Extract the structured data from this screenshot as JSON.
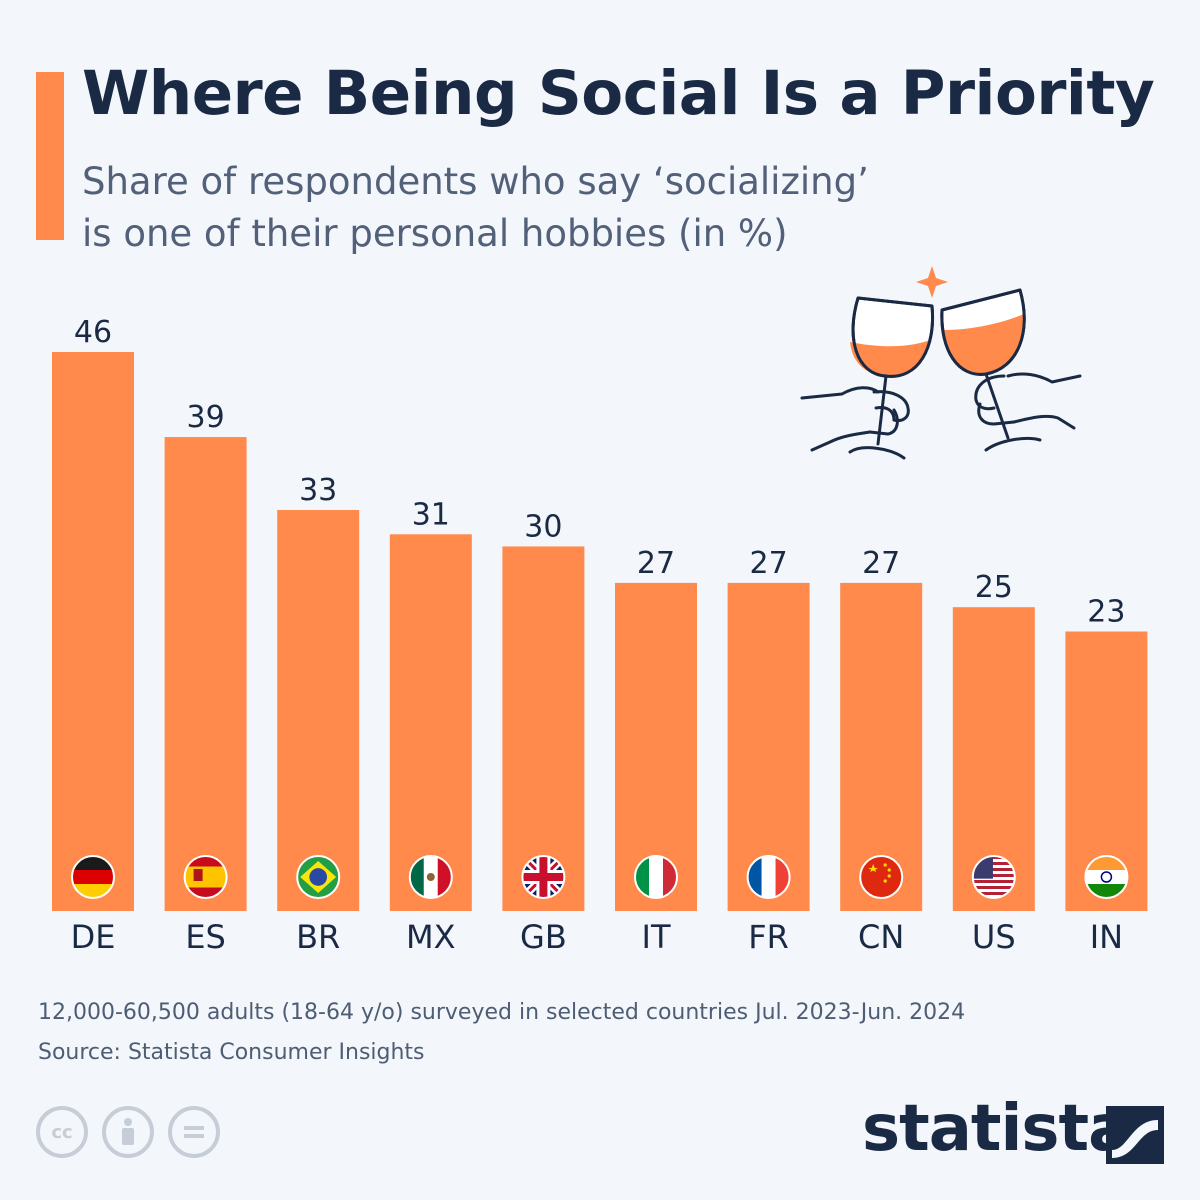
{
  "header": {
    "title": "Where Being Social Is a Priority",
    "subtitle": "Share of respondents who say ‘socializing’ is one of their personal hobbies (in %)"
  },
  "chart_data": {
    "type": "bar",
    "categories": [
      "DE",
      "ES",
      "BR",
      "MX",
      "GB",
      "IT",
      "FR",
      "CN",
      "US",
      "IN"
    ],
    "values": [
      46,
      39,
      33,
      31,
      30,
      27,
      27,
      27,
      25,
      23
    ],
    "flags": [
      "de-flag-icon",
      "es-flag-icon",
      "br-flag-icon",
      "mx-flag-icon",
      "gb-flag-icon",
      "it-flag-icon",
      "fr-flag-icon",
      "cn-flag-icon",
      "us-flag-icon",
      "in-flag-icon"
    ],
    "ylim": [
      0,
      46
    ],
    "bar_color": "#ff8a4c",
    "grid": false,
    "data_labels": true
  },
  "footer": {
    "note": "12,000-60,500 adults (18-64 y/o) surveyed in selected countries Jul. 2023-Jun. 2024",
    "source": "Source: Statista Consumer Insights",
    "brand": "statista",
    "license_icons": [
      "cc-icon",
      "attribution-icon",
      "no-derivatives-icon"
    ]
  },
  "colors": {
    "background": "#f3f7fb",
    "accent": "#ff8a4c",
    "title": "#1b2a44",
    "subtitle": "#536079"
  }
}
